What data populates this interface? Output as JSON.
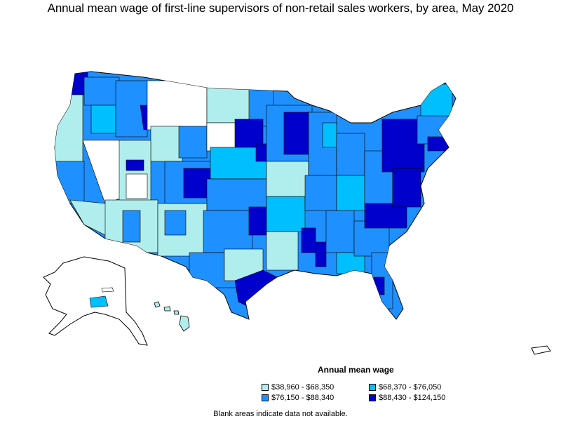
{
  "title": "Annual mean wage of first-line supervisors of non-retail sales workers, by area, May 2020",
  "legend": {
    "title": "Annual mean wage",
    "items": [
      {
        "label": "$38,960 - $68,350",
        "color": "#b0eeee"
      },
      {
        "label": "$68,370 - $76,050",
        "color": "#00bfff"
      },
      {
        "label": "$76,150 - $88,340",
        "color": "#1e90ff"
      },
      {
        "label": "$88,430 - $124,150",
        "color": "#0000cd"
      }
    ]
  },
  "note": "Blank areas indicate data not available."
}
